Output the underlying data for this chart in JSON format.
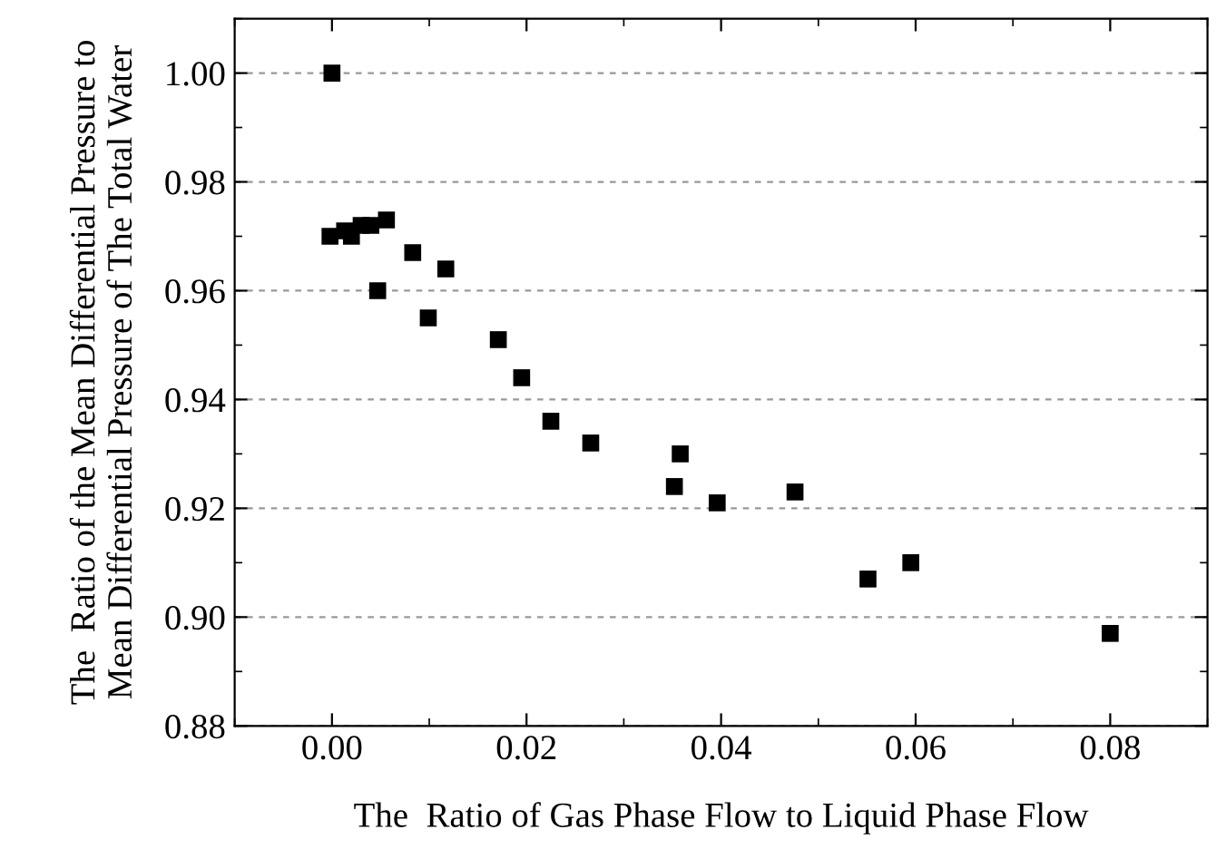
{
  "chart_data": {
    "type": "scatter",
    "xlabel": "The  Ratio of Gas Phase Flow to Liquid Phase Flow",
    "ylabel": "The  Ratio of the Mean Differential Pressure to\nMean Differential Pressure of The Total Water",
    "x": [
      0,
      -0.0002,
      0.0005,
      0.0013,
      0.002,
      0.003,
      0.004,
      0.0047,
      0.0056,
      0.0083,
      0.0099,
      0.0117,
      0.0171,
      0.0195,
      0.0225,
      0.0266,
      0.0352,
      0.0358,
      0.0396,
      0.0476,
      0.0551,
      0.0595,
      0.08
    ],
    "values": [
      1.0,
      0.97,
      null,
      0.971,
      0.97,
      0.972,
      0.972,
      0.96,
      0.973,
      0.967,
      0.955,
      0.964,
      0.951,
      0.944,
      0.936,
      0.932,
      0.924,
      0.93,
      0.921,
      0.923,
      0.907,
      0.91,
      0.897
    ],
    "color": "#000000",
    "marker": "square",
    "grid": "y",
    "xlim": [
      -0.01,
      0.09
    ],
    "ylim": [
      0.88,
      1.01
    ],
    "xticks": [
      {
        "value": 0,
        "label": "0.00"
      },
      {
        "value": 0.02,
        "label": "0.02"
      },
      {
        "value": 0.04,
        "label": "0.04"
      },
      {
        "value": 0.06,
        "label": "0.06"
      },
      {
        "value": 0.08,
        "label": "0.08"
      }
    ],
    "yticks": [
      {
        "value": 0.88,
        "label": "0.88"
      },
      {
        "value": 0.9,
        "label": "0.90"
      },
      {
        "value": 0.92,
        "label": "0.92"
      },
      {
        "value": 0.94,
        "label": "0.94"
      },
      {
        "value": 0.96,
        "label": "0.96"
      },
      {
        "value": 0.98,
        "label": "0.98"
      },
      {
        "value": 1.0,
        "label": "1.00"
      }
    ]
  }
}
